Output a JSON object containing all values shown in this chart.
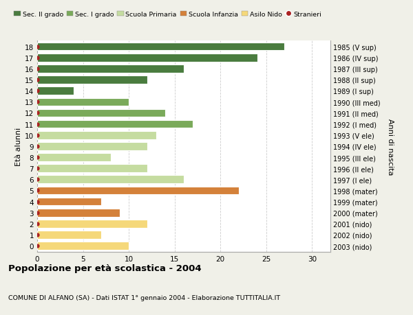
{
  "ages": [
    18,
    17,
    16,
    15,
    14,
    13,
    12,
    11,
    10,
    9,
    8,
    7,
    6,
    5,
    4,
    3,
    2,
    1,
    0
  ],
  "years_labels": [
    "1985 (V sup)",
    "1986 (IV sup)",
    "1987 (III sup)",
    "1988 (II sup)",
    "1989 (I sup)",
    "1990 (III med)",
    "1991 (II med)",
    "1992 (I med)",
    "1993 (V ele)",
    "1994 (IV ele)",
    "1995 (III ele)",
    "1996 (II ele)",
    "1997 (I ele)",
    "1998 (mater)",
    "1999 (mater)",
    "2000 (mater)",
    "2001 (nido)",
    "2002 (nido)",
    "2003 (nido)"
  ],
  "values": [
    27,
    24,
    16,
    12,
    4,
    10,
    14,
    17,
    13,
    12,
    8,
    12,
    16,
    22,
    7,
    9,
    12,
    7,
    10
  ],
  "bar_colors": [
    "#4a7c3f",
    "#4a7c3f",
    "#4a7c3f",
    "#4a7c3f",
    "#4a7c3f",
    "#7aaa5a",
    "#7aaa5a",
    "#7aaa5a",
    "#c5dca0",
    "#c5dca0",
    "#c5dca0",
    "#c5dca0",
    "#c5dca0",
    "#d4813a",
    "#d4813a",
    "#d4813a",
    "#f5d87a",
    "#f5d87a",
    "#f5d87a"
  ],
  "legend_labels": [
    "Sec. II grado",
    "Sec. I grado",
    "Scuola Primaria",
    "Scuola Infanzia",
    "Asilo Nido",
    "Stranieri"
  ],
  "legend_colors": [
    "#4a7c3f",
    "#7aaa5a",
    "#c5dca0",
    "#d4813a",
    "#f5d87a",
    "#c0392b"
  ],
  "title": "Popolazione per età scolastica - 2004",
  "subtitle": "COMUNE DI ALFANO (SA) - Dati ISTAT 1° gennaio 2004 - Elaborazione TUTTITALIA.IT",
  "ylabel_left": "Età alunni",
  "ylabel_right": "Anni di nascita",
  "bg_color": "#f0f0e8",
  "plot_bg_color": "#ffffff",
  "grid_color": "#cccccc",
  "xlim": [
    0,
    32
  ],
  "stranieri_color": "#aa2222"
}
